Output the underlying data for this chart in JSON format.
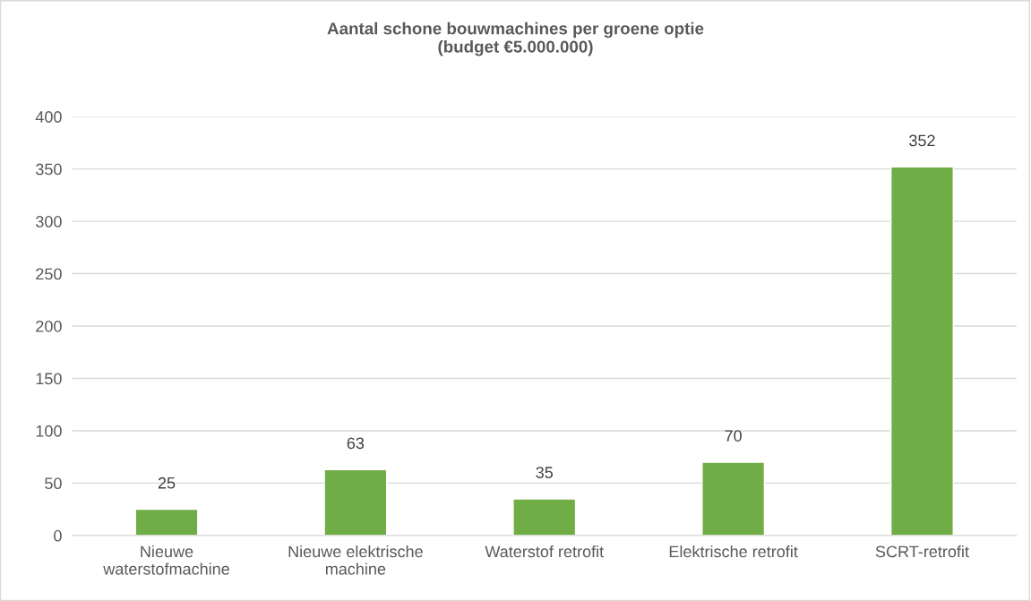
{
  "chart_data": {
    "type": "bar",
    "title": "Aantal schone bouwmachines per groene optie\n(budget €5.000.000)",
    "categories": [
      "Nieuwe\nwaterstofmachine",
      "Nieuwe elektrische\nmachine",
      "Waterstof retrofit",
      "Elektrische retrofit",
      "SCRT-retrofit"
    ],
    "values": [
      25,
      63,
      35,
      70,
      352
    ],
    "color": "#70ad47",
    "ylim": [
      0,
      400
    ],
    "yticks": [
      0,
      50,
      100,
      150,
      200,
      250,
      300,
      350,
      400
    ],
    "grid": "y",
    "data_labels": true
  }
}
